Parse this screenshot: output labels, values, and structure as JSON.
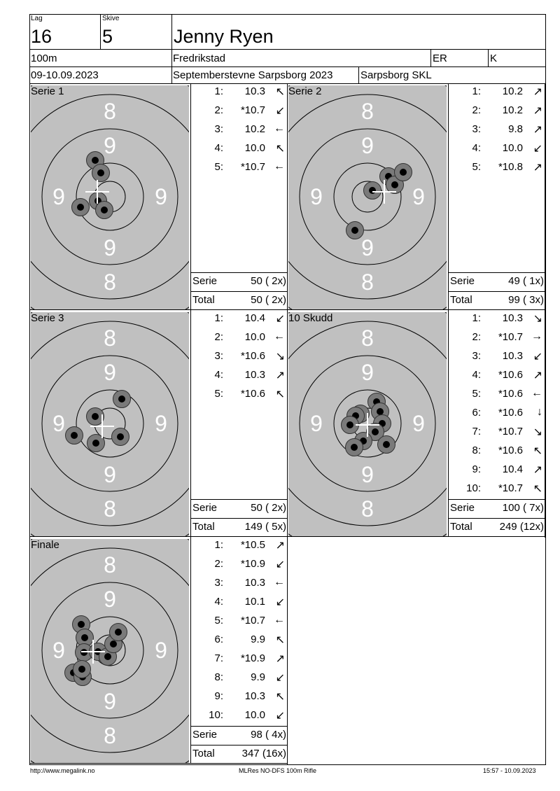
{
  "header": {
    "lag_label": "Lag",
    "lag": "16",
    "skive_label": "Skive",
    "skive": "5",
    "name": "Jenny Ryen",
    "distance": "100m",
    "club_city": "Fredrikstad",
    "class": "ER",
    "gender": "K",
    "date": "09-10.09.2023",
    "event": "Septemberstevne Sarpsborg 2023",
    "organizer": "Sarpsborg SKL"
  },
  "target_labels": {
    "ring8": "8",
    "ring9": "9"
  },
  "panels": [
    {
      "title": "Serie 1",
      "shots": [
        {
          "n": "1:",
          "score": "10.3",
          "dir": "↖"
        },
        {
          "n": "2:",
          "score": "*10.7",
          "dir": "↙"
        },
        {
          "n": "3:",
          "score": "10.2",
          "dir": "←"
        },
        {
          "n": "4:",
          "score": "10.0",
          "dir": "↖"
        },
        {
          "n": "5:",
          "score": "*10.7",
          "dir": "←"
        }
      ],
      "serie_label": "Serie",
      "serie": "50 ( 2x)",
      "total_label": "Total",
      "total": "50 ( 2x)"
    },
    {
      "title": "Serie 2",
      "shots": [
        {
          "n": "1:",
          "score": "10.2",
          "dir": "↗"
        },
        {
          "n": "2:",
          "score": "10.2",
          "dir": "↗"
        },
        {
          "n": "3:",
          "score": "9.8",
          "dir": "↗"
        },
        {
          "n": "4:",
          "score": "10.0",
          "dir": "↙"
        },
        {
          "n": "5:",
          "score": "*10.8",
          "dir": "↗"
        }
      ],
      "serie_label": "Serie",
      "serie": "49 ( 1x)",
      "total_label": "Total",
      "total": "99 ( 3x)"
    },
    {
      "title": "Serie 3",
      "shots": [
        {
          "n": "1:",
          "score": "10.4",
          "dir": "↙"
        },
        {
          "n": "2:",
          "score": "10.0",
          "dir": "←"
        },
        {
          "n": "3:",
          "score": "*10.6",
          "dir": "↘"
        },
        {
          "n": "4:",
          "score": "10.3",
          "dir": "↗"
        },
        {
          "n": "5:",
          "score": "*10.6",
          "dir": "↖"
        }
      ],
      "serie_label": "Serie",
      "serie": "50 ( 2x)",
      "total_label": "Total",
      "total": "149 ( 5x)"
    },
    {
      "title": "10 Skudd",
      "shots": [
        {
          "n": "1:",
          "score": "10.3",
          "dir": "↘"
        },
        {
          "n": "2:",
          "score": "*10.7",
          "dir": "→"
        },
        {
          "n": "3:",
          "score": "10.3",
          "dir": "↙"
        },
        {
          "n": "4:",
          "score": "*10.6",
          "dir": "↗"
        },
        {
          "n": "5:",
          "score": "*10.6",
          "dir": "←"
        },
        {
          "n": "6:",
          "score": "*10.6",
          "dir": "↓"
        },
        {
          "n": "7:",
          "score": "*10.7",
          "dir": "↘"
        },
        {
          "n": "8:",
          "score": "*10.6",
          "dir": "↖"
        },
        {
          "n": "9:",
          "score": "10.4",
          "dir": "↗"
        },
        {
          "n": "10:",
          "score": "*10.7",
          "dir": "↖"
        }
      ],
      "serie_label": "Serie",
      "serie": "100 ( 7x)",
      "total_label": "Total",
      "total": "249 (12x)"
    },
    {
      "title": "Finale",
      "shots": [
        {
          "n": "1:",
          "score": "*10.5",
          "dir": "↗"
        },
        {
          "n": "2:",
          "score": "*10.9",
          "dir": "↙"
        },
        {
          "n": "3:",
          "score": "10.3",
          "dir": "←"
        },
        {
          "n": "4:",
          "score": "10.1",
          "dir": "↙"
        },
        {
          "n": "5:",
          "score": "*10.7",
          "dir": "←"
        },
        {
          "n": "6:",
          "score": "9.9",
          "dir": "↖"
        },
        {
          "n": "7:",
          "score": "*10.9",
          "dir": "↗"
        },
        {
          "n": "8:",
          "score": "9.9",
          "dir": "↙"
        },
        {
          "n": "9:",
          "score": "10.3",
          "dir": "↖"
        },
        {
          "n": "10:",
          "score": "10.0",
          "dir": "↙"
        }
      ],
      "serie_label": "Serie",
      "serie": "98 ( 4x)",
      "total_label": "Total",
      "total": "347 (16x)"
    }
  ],
  "footer": {
    "url": "http://www.megalink.no",
    "software": "MLRes NO-DFS 100m Rifle",
    "timestamp": "15:57 - 10.09.2023"
  },
  "colors": {
    "target_bg": "#c0c0c0",
    "hole_outer": "#7a7a7a",
    "hole_inner": "#000000"
  }
}
